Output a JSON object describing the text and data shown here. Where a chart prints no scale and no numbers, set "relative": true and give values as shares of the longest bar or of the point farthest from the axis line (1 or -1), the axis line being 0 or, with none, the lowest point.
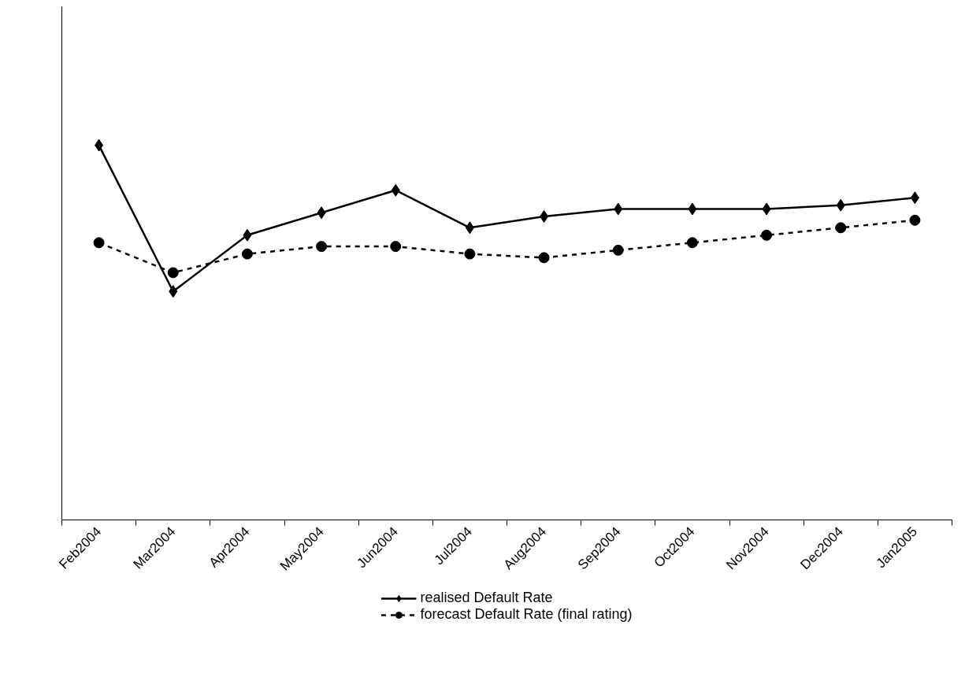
{
  "chart_data": {
    "type": "line",
    "relative": true,
    "categories": [
      "Feb2004",
      "Mar2004",
      "Apr2004",
      "May2004",
      "Jun2004",
      "Jul2004",
      "Aug2004",
      "Sep2004",
      "Oct2004",
      "Nov2004",
      "Dec2004",
      "Jan2005"
    ],
    "series": [
      {
        "name": "realised Default Rate",
        "color": "#000000",
        "marker": "diamond",
        "line_style": "solid",
        "values": [
          1.0,
          0.61,
          0.76,
          0.82,
          0.88,
          0.78,
          0.81,
          0.83,
          0.83,
          0.83,
          0.84,
          0.86
        ]
      },
      {
        "name": "forecast Default Rate (final rating)",
        "color": "#000000",
        "marker": "circle",
        "line_style": "dashed",
        "values": [
          0.74,
          0.66,
          0.71,
          0.73,
          0.73,
          0.71,
          0.7,
          0.72,
          0.74,
          0.76,
          0.78,
          0.8
        ]
      }
    ],
    "legend": "bottom"
  }
}
